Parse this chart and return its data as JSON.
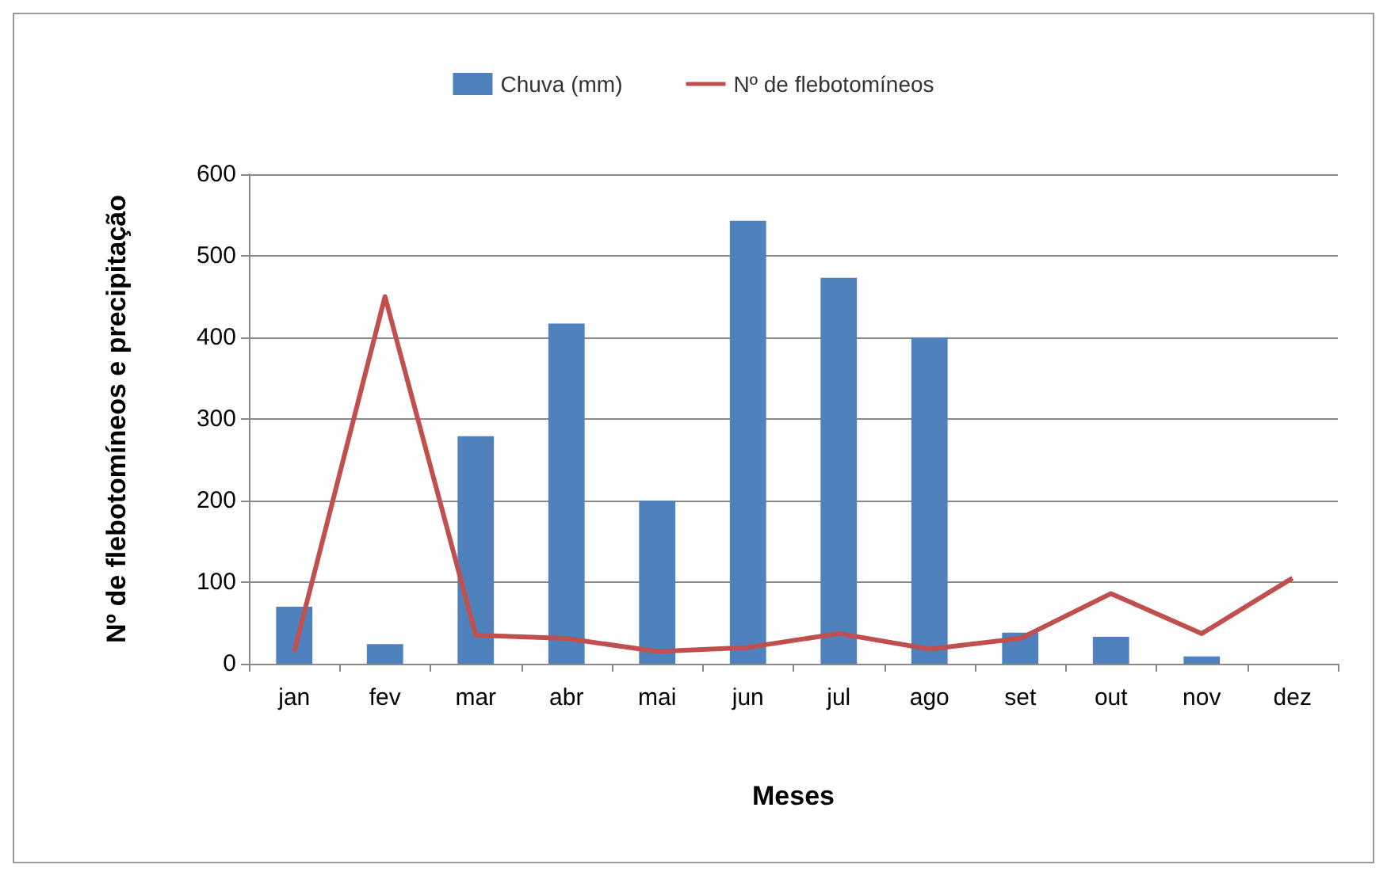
{
  "chart_data": {
    "type": "bar",
    "xlabel": "Meses",
    "ylabel": "Nº de flebotomíneos e precipitação",
    "categories": [
      "jan",
      "fev",
      "mar",
      "abr",
      "mai",
      "jun",
      "jul",
      "ago",
      "set",
      "out",
      "nov",
      "dez"
    ],
    "series": [
      {
        "name": "Chuva (mm)",
        "color": "#4f81bd",
        "values": [
          70,
          24,
          279,
          417,
          200,
          543,
          473,
          400,
          38,
          33,
          9,
          0
        ]
      },
      {
        "name": "Nº de flebotomíneos",
        "type": "line",
        "color": "#c0504d",
        "values": [
          15,
          450,
          35,
          31,
          15,
          20,
          37,
          18,
          31,
          86,
          37,
          105
        ]
      }
    ],
    "ylim": [
      0,
      600
    ],
    "yticks": [
      0,
      100,
      200,
      300,
      400,
      500,
      600
    ],
    "grid": "y",
    "legend": "top",
    "marker": "none"
  }
}
